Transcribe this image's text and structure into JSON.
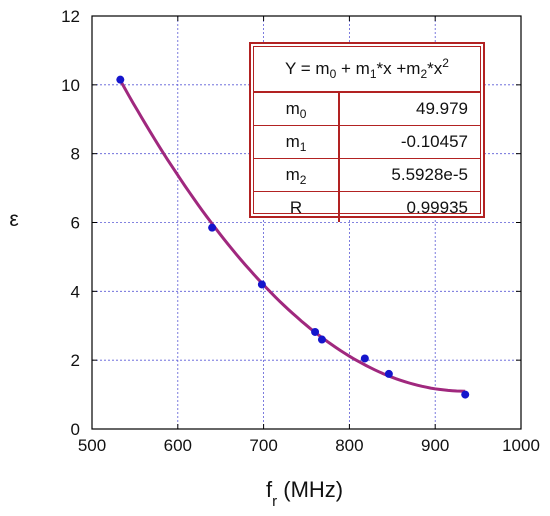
{
  "chart_data": {
    "type": "scatter",
    "x_ticks": [
      "500",
      "600",
      "700",
      "800",
      "900",
      "1000"
    ],
    "y_ticks": [
      "0",
      "2",
      "4",
      "6",
      "8",
      "10",
      "12"
    ],
    "xlim": [
      500,
      1000
    ],
    "ylim": [
      0,
      12
    ],
    "grid": true,
    "xlabel_main": "f",
    "xlabel_sub": "r",
    "xlabel_unit": " (MHz)",
    "ylabel": "ε",
    "points": [
      {
        "x": 533,
        "y": 10.15
      },
      {
        "x": 640,
        "y": 5.85
      },
      {
        "x": 698,
        "y": 4.2
      },
      {
        "x": 760,
        "y": 2.82
      },
      {
        "x": 768,
        "y": 2.6
      },
      {
        "x": 818,
        "y": 2.05
      },
      {
        "x": 846,
        "y": 1.6
      },
      {
        "x": 935,
        "y": 1.0
      }
    ],
    "fit": {
      "model": "quadratic",
      "m0": 49.979,
      "m1": -0.10457,
      "m2": 5.5928e-05,
      "x_range": [
        533,
        935
      ]
    },
    "point_color": "#1515cc",
    "line_color": "#a0287e",
    "grid_color": "#5b5bd6",
    "table_color": "#b22222"
  },
  "fit_table": {
    "eq": {
      "a": "Y = m",
      "s0": "0",
      "b": " + m",
      "s1": "1",
      "c": "*x +m",
      "s2": "2",
      "d": "*x",
      "sup": "2"
    },
    "rows": [
      {
        "name": "m",
        "sub": "0",
        "value": "49.979"
      },
      {
        "name": "m",
        "sub": "1",
        "value": "-0.10457"
      },
      {
        "name": "m",
        "sub": "2",
        "value": "5.5928e-5"
      },
      {
        "name": "R",
        "sub": "",
        "value": "0.99935"
      }
    ]
  }
}
